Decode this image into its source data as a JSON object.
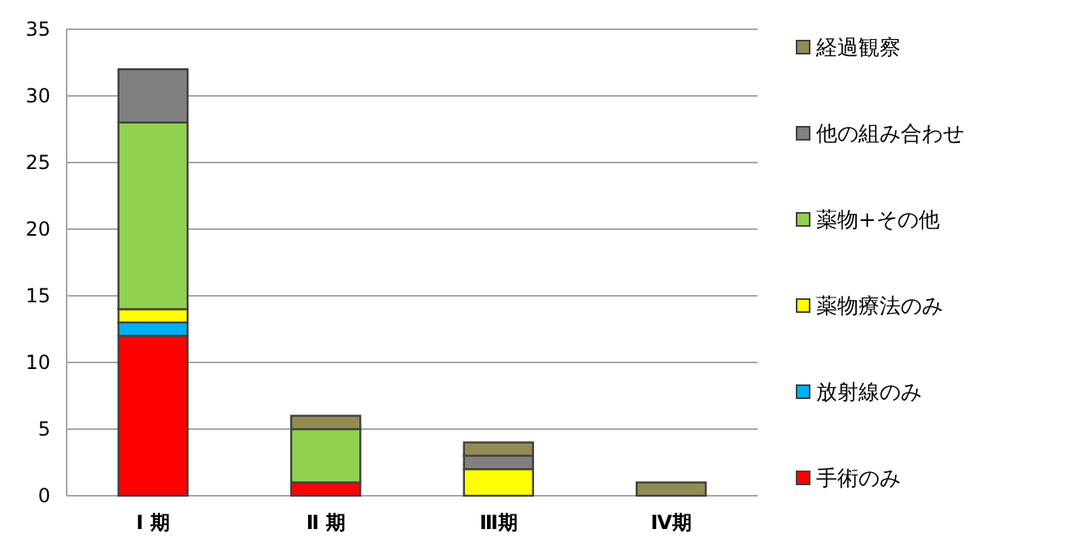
{
  "chart_data": {
    "type": "bar",
    "stacked": true,
    "categories": [
      "Ⅰ 期",
      "Ⅱ 期",
      "Ⅲ期",
      "Ⅳ期"
    ],
    "series": [
      {
        "name": "手術のみ",
        "color": "#ff0000",
        "values": [
          12,
          1,
          null,
          null
        ]
      },
      {
        "name": "放射線のみ",
        "color": "#00b0f0",
        "values": [
          1,
          null,
          null,
          null
        ]
      },
      {
        "name": "薬物療法のみ",
        "color": "#ffff00",
        "values": [
          1,
          null,
          2,
          null
        ]
      },
      {
        "name": "薬物+その他",
        "color": "#92d050",
        "values": [
          14,
          4,
          null,
          null
        ]
      },
      {
        "name": "他の組み合わせ",
        "color": "#808080",
        "values": [
          4,
          null,
          1,
          null
        ]
      },
      {
        "name": "経過観察",
        "color": "#948a54",
        "values": [
          null,
          1,
          1,
          1
        ]
      }
    ],
    "ylim": [
      0,
      35
    ],
    "yticks": [
      0,
      5,
      10,
      15,
      20,
      25,
      30,
      35
    ],
    "grid": "y",
    "legend": "right"
  }
}
